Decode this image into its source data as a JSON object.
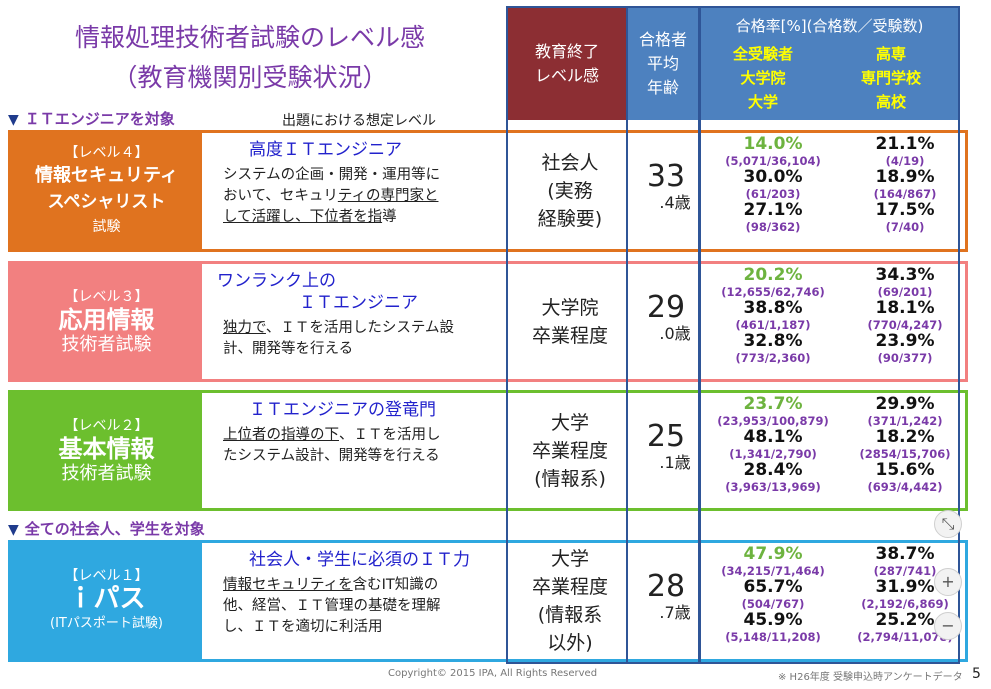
{
  "title_line1": "情報処理技術者試験のレベル感",
  "title_line2": "（教育機関別受験状況）",
  "section_it": "ＩＴエンジニアを対象",
  "subheader_level": "出題における想定レベル",
  "section_all": "全ての社会人、学生を対象",
  "header": {
    "edu": "教育終了\nレベル感",
    "age": "合格者\n平均\n年齢",
    "rate_title": "合格率[%](合格数／受験数)",
    "rate_left": [
      "全受験者",
      "大学院",
      "大学"
    ],
    "rate_right": [
      "高専",
      "専門学校",
      "高校"
    ]
  },
  "levels": [
    {
      "label": "【レベル４】",
      "name": "情報セキュリティ",
      "name2": "スペシャリスト",
      "sub": "試験",
      "desc_title": "高度ＩＴエンジニア",
      "desc_lines": [
        "システムの企画・開発・運用等に",
        "おいて、セキュリティの専門家と",
        "して活躍し、下位者を指導"
      ],
      "edu": [
        "社会人",
        "(実務",
        "経験要)"
      ],
      "age_int": "33",
      "age_dec": ".4歳",
      "rates_left": [
        [
          "14.0%",
          "(5,071/36,104)"
        ],
        [
          "30.0%",
          "(61/203)"
        ],
        [
          "27.1%",
          "(98/362)"
        ]
      ],
      "rates_right": [
        [
          "21.1%",
          "(4/19)"
        ],
        [
          "18.9%",
          "(164/867)"
        ],
        [
          "17.5%",
          "(7/40)"
        ]
      ]
    },
    {
      "label": "【レベル３】",
      "name": "応用情報",
      "name2": "",
      "sub": "技術者試験",
      "desc_title": "ワンランク上の",
      "desc_title2": "ＩＴエンジニア",
      "desc_lines": [
        "独力で、ＩＴを活用したシステム設",
        "計、開発等を行える"
      ],
      "edu": [
        "大学院",
        "卒業程度"
      ],
      "age_int": "29",
      "age_dec": ".0歳",
      "rates_left": [
        [
          "20.2%",
          "(12,655/62,746)"
        ],
        [
          "38.8%",
          "(461/1,187)"
        ],
        [
          "32.8%",
          "(773/2,360)"
        ]
      ],
      "rates_right": [
        [
          "34.3%",
          "(69/201)"
        ],
        [
          "18.1%",
          "(770/4,247)"
        ],
        [
          "23.9%",
          "(90/377)"
        ]
      ]
    },
    {
      "label": "【レベル２】",
      "name": "基本情報",
      "name2": "",
      "sub": "技術者試験",
      "desc_title": "ＩＴエンジニアの登竜門",
      "desc_lines": [
        "上位者の指導の下、ＩＴを活用し",
        "たシステム設計、開発等を行える"
      ],
      "edu": [
        "大学",
        "卒業程度",
        "(情報系)"
      ],
      "age_int": "25",
      "age_dec": ".1歳",
      "rates_left": [
        [
          "23.7%",
          "(23,953/100,879)"
        ],
        [
          "48.1%",
          "(1,341/2,790)"
        ],
        [
          "28.4%",
          "(3,963/13,969)"
        ]
      ],
      "rates_right": [
        [
          "29.9%",
          "(371/1,242)"
        ],
        [
          "18.2%",
          "(2854/15,706)"
        ],
        [
          "15.6%",
          "(693/4,442)"
        ]
      ]
    },
    {
      "label": "【レベル１】",
      "name": "ｉパス",
      "name2": "",
      "sub": "(ITパスポート試験)",
      "desc_title": "社会人・学生に必須のＩＴ力",
      "desc_lines": [
        "情報セキュリティを含むIT知識の",
        "他、経営、ＩＴ管理の基礎を理解",
        "し、ＩＴを適切に利活用"
      ],
      "edu": [
        "大学",
        "卒業程度",
        "(情報系",
        "以外)"
      ],
      "age_int": "28",
      "age_dec": ".7歳",
      "rates_left": [
        [
          "47.9%",
          "(34,215/71,464)"
        ],
        [
          "65.7%",
          "(504/767)"
        ],
        [
          "45.9%",
          "(5,148/11,208)"
        ]
      ],
      "rates_right": [
        [
          "38.7%",
          "(287/741)"
        ],
        [
          "31.9%",
          "(2,192/6,869)"
        ],
        [
          "25.2%",
          "(2,794/11,078)"
        ]
      ]
    }
  ],
  "copyright": "Copyright© 2015 IPA, All Rights Reserved",
  "note": "※ H26年度 受験申込時アンケートデータ",
  "page_no": "5",
  "zoom": {
    "fit": "⤡",
    "plus": "+",
    "minus": "−"
  },
  "colors": {
    "title": "#7a3aa8",
    "lvl4": "#e0731f",
    "lvl3": "#f28080",
    "lvl2": "#6cbf2e",
    "lvl1": "#2fa8e0",
    "hdr_edu": "#8c2e33",
    "hdr_blue": "#4d81bf"
  }
}
